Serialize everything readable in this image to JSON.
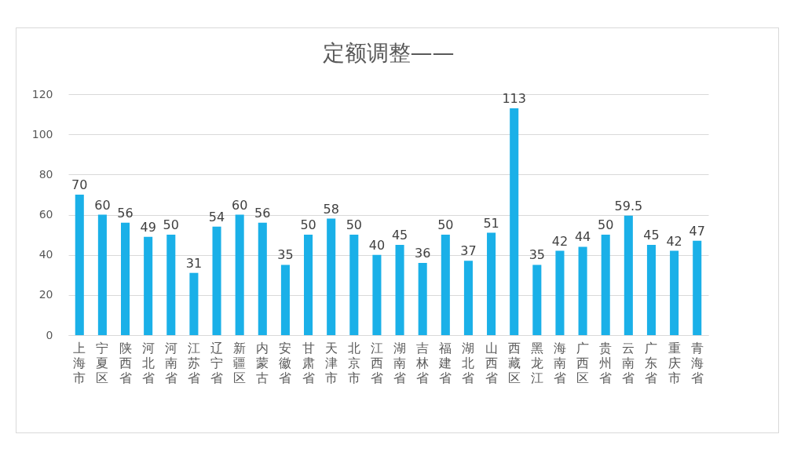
{
  "chart_data": {
    "type": "bar",
    "title": "定额调整——",
    "categories": [
      "上海市",
      "宁夏区",
      "陕西省",
      "河北省",
      "河南省",
      "江苏省",
      "辽宁省",
      "新疆区",
      "内蒙古",
      "安徽省",
      "甘肃省",
      "天津市",
      "北京市",
      "江西省",
      "湖南省",
      "吉林省",
      "福建省",
      "湖北省",
      "山西省",
      "西藏区",
      "黑龙江",
      "海南省",
      "广西区",
      "贵州省",
      "云南省",
      "广东省",
      "重庆市",
      "青海省"
    ],
    "values": [
      70,
      60,
      56,
      49,
      50,
      31,
      54,
      60,
      56,
      35,
      50,
      58,
      50,
      40,
      45,
      36,
      50,
      37,
      51,
      113,
      35,
      42,
      44,
      50,
      59.5,
      45,
      42,
      47
    ],
    "color": "#1ab0e8",
    "ylim": [
      0,
      120
    ],
    "yticks": [
      0,
      20,
      40,
      60,
      80,
      100,
      120
    ],
    "grid": "y",
    "data_labels": true
  }
}
